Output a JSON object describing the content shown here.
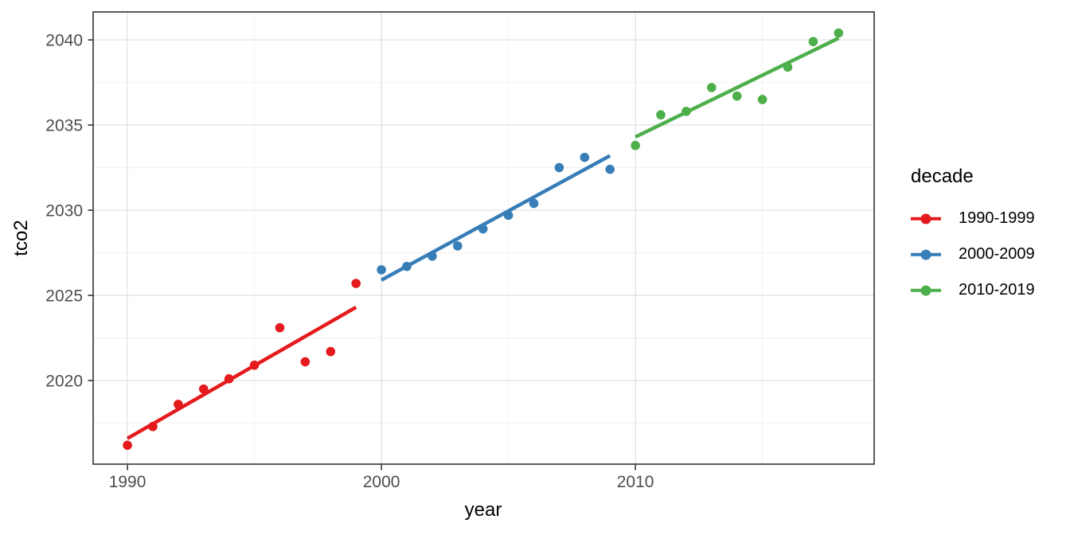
{
  "figure": {
    "xlabel": "year",
    "ylabel": "tco2",
    "legend_title": "decade"
  },
  "style": {
    "panel_border_color": "#333333",
    "tick_label_color": "#4d4d4d",
    "tick_mark_color": "#333333",
    "major_grid_color": "#e4e4e4",
    "minor_grid_color": "#f2f2f2",
    "background": "#ffffff"
  },
  "chart_data": {
    "type": "scatter",
    "title": "",
    "xlabel": "year",
    "ylabel": "tco2",
    "legend_title": "decade",
    "legend_position": "right",
    "grid": true,
    "xlim": [
      1988.65,
      2019.4
    ],
    "ylim": [
      2015.09,
      2041.64
    ],
    "x_ticks": [
      1990,
      2000,
      2010
    ],
    "y_ticks": [
      2020,
      2025,
      2030,
      2035,
      2040
    ],
    "x_minor_ticks": [
      1995,
      2005,
      2015
    ],
    "y_minor_ticks": [
      2017.5,
      2022.5,
      2027.5,
      2032.5,
      2037.5
    ],
    "series": [
      {
        "name": "1990-1999",
        "color": "#E41A1C",
        "x": [
          1990,
          1991,
          1992,
          1993,
          1994,
          1995,
          1996,
          1997,
          1998,
          1999
        ],
        "y": [
          2016.2,
          2017.3,
          2018.6,
          2019.5,
          2020.1,
          2020.9,
          2023.1,
          2021.1,
          2021.7,
          2025.7
        ],
        "trend": {
          "x": [
            1990,
            1999
          ],
          "y": [
            2016.6,
            2024.3
          ]
        }
      },
      {
        "name": "2000-2009",
        "color": "#377EB8",
        "x": [
          2000,
          2001,
          2002,
          2003,
          2004,
          2005,
          2006,
          2007,
          2008,
          2009
        ],
        "y": [
          2026.5,
          2026.7,
          2027.3,
          2027.9,
          2028.9,
          2029.7,
          2030.4,
          2032.5,
          2033.1,
          2032.4
        ],
        "trend": {
          "x": [
            2000,
            2009
          ],
          "y": [
            2025.9,
            2033.2
          ]
        }
      },
      {
        "name": "2010-2019",
        "color": "#4DAF4A",
        "x": [
          2010,
          2011,
          2012,
          2013,
          2014,
          2015,
          2016,
          2017,
          2018
        ],
        "y": [
          2033.8,
          2035.6,
          2035.8,
          2037.2,
          2036.7,
          2036.5,
          2038.4,
          2039.9,
          2040.4
        ],
        "trend": {
          "x": [
            2010,
            2018
          ],
          "y": [
            2034.3,
            2040.1
          ]
        }
      }
    ]
  }
}
